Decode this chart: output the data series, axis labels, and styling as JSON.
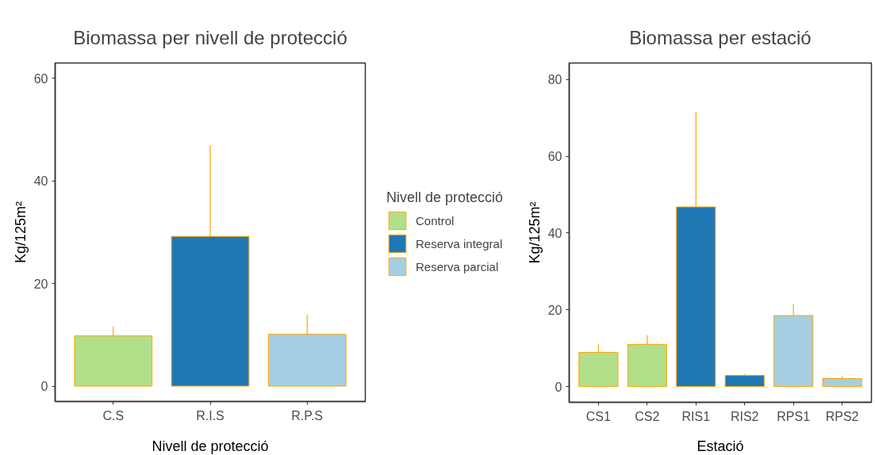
{
  "chart_data": [
    {
      "type": "bar",
      "title": "Biomassa per nivell de protecció",
      "xlabel": "Nivell de protecció",
      "ylabel": "Kg/125m²",
      "categories": [
        "C.S",
        "R.I.S",
        "R.P.S"
      ],
      "stacked": true,
      "legend": "right",
      "legend_title": "Nivell de protecció",
      "series": [
        {
          "name": "Control",
          "color": "#b2df8a",
          "values": [
            9.8,
            null,
            null
          ],
          "errors": [
            [
              9.8,
              11.6
            ],
            null,
            null
          ]
        },
        {
          "name": "Reserva integral",
          "color": "#1f78b4",
          "values": [
            null,
            29.2,
            null
          ],
          "errors": [
            null,
            [
              29.2,
              47.0
            ],
            null
          ]
        },
        {
          "name": "Reserva parcial",
          "color": "#a6cee3",
          "values": [
            null,
            null,
            10.1
          ],
          "errors": [
            null,
            null,
            [
              10.1,
              13.9
            ]
          ]
        }
      ],
      "ylim": [
        -3,
        63
      ],
      "yticks": [
        0,
        20,
        40,
        60
      ]
    },
    {
      "type": "bar",
      "title": "Biomassa per estació",
      "xlabel": "Estació",
      "ylabel": "Kg/125m²",
      "categories": [
        "CS1",
        "CS2",
        "RIS1",
        "RIS2",
        "RPS1",
        "RPS2"
      ],
      "values": [
        8.9,
        11.0,
        46.8,
        2.9,
        18.5,
        2.1
      ],
      "colors": [
        "#b2df8a",
        "#b2df8a",
        "#1f78b4",
        "#1f78b4",
        "#a6cee3",
        "#a6cee3"
      ],
      "errors": [
        [
          8.9,
          11.0
        ],
        [
          11.0,
          13.4
        ],
        [
          46.8,
          71.6
        ],
        [
          2.9,
          3.3
        ],
        [
          18.5,
          21.4
        ],
        [
          2.1,
          2.7
        ]
      ],
      "ylim": [
        -4.1,
        84.3
      ],
      "yticks": [
        0,
        20,
        40,
        60,
        80
      ]
    }
  ]
}
